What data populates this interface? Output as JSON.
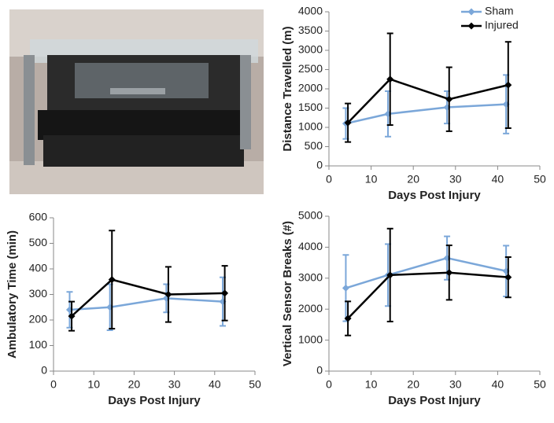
{
  "chart_data": [
    {
      "type": "line",
      "xlabel": "Days Post Injury",
      "ylabel": "Distance Travelled (m)",
      "xlim": [
        0,
        50
      ],
      "xticks": [
        0,
        10,
        20,
        30,
        40,
        50
      ],
      "ylim": [
        0,
        4000
      ],
      "yticks": [
        0,
        500,
        1000,
        1500,
        2000,
        2500,
        3000,
        3500,
        4000
      ],
      "legend": "top-right",
      "series": [
        {
          "name": "Sham",
          "color": "#7ba7d9",
          "x": [
            4,
            14,
            28,
            42
          ],
          "values": [
            1100,
            1350,
            1520,
            1600
          ],
          "errors": [
            400,
            590,
            420,
            760
          ]
        },
        {
          "name": "Injured",
          "color": "#000000",
          "x": [
            4.5,
            14.5,
            28.5,
            42.5
          ],
          "values": [
            1120,
            2250,
            1730,
            2100
          ],
          "errors": [
            500,
            1190,
            830,
            1120
          ]
        }
      ]
    },
    {
      "type": "line",
      "xlabel": "Days Post Injury",
      "ylabel": "Ambulatory Time (min)",
      "xlim": [
        0,
        50
      ],
      "xticks": [
        0,
        10,
        20,
        30,
        40,
        50
      ],
      "ylim": [
        0,
        600
      ],
      "yticks": [
        0,
        100,
        200,
        300,
        400,
        500,
        600
      ],
      "series": [
        {
          "color": "#7ba7d9",
          "x": [
            4,
            14,
            28,
            42
          ],
          "values": [
            240,
            250,
            285,
            272
          ],
          "errors": [
            70,
            90,
            55,
            95
          ]
        },
        {
          "color": "#000000",
          "x": [
            4.5,
            14.5,
            28.5,
            42.5
          ],
          "values": [
            215,
            358,
            300,
            305
          ],
          "errors": [
            57,
            192,
            108,
            107
          ]
        }
      ]
    },
    {
      "type": "line",
      "xlabel": "Days Post Injury",
      "ylabel": "Vertical Sensor Breaks (#)",
      "xlim": [
        0,
        50
      ],
      "xticks": [
        0,
        10,
        20,
        30,
        40,
        50
      ],
      "ylim": [
        0,
        5000
      ],
      "yticks": [
        0,
        1000,
        2000,
        3000,
        4000,
        5000
      ],
      "series": [
        {
          "color": "#7ba7d9",
          "x": [
            4,
            14,
            28,
            42
          ],
          "values": [
            2680,
            3100,
            3650,
            3230
          ],
          "errors": [
            1070,
            1000,
            700,
            820
          ]
        },
        {
          "color": "#000000",
          "x": [
            4.5,
            14.5,
            28.5,
            42.5
          ],
          "values": [
            1700,
            3100,
            3180,
            3030
          ],
          "errors": [
            550,
            1500,
            880,
            650
          ]
        }
      ]
    }
  ]
}
